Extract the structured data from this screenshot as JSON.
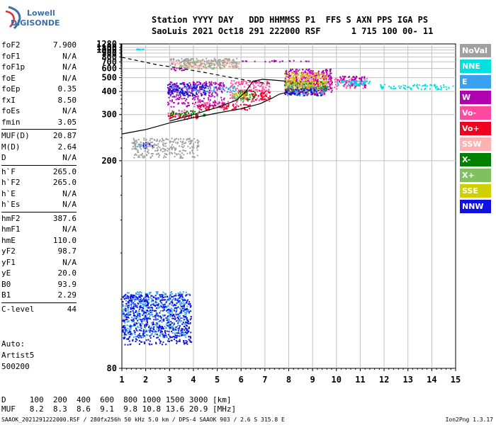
{
  "logo": {
    "line1": "Lowell",
    "line2": "DIGISONDE"
  },
  "header": {
    "line1": "Station YYYY DAY   DDD HHMMSS P1  FFS S AXN PPS IGA PS",
    "line2": "SaoLuis 2021 Oct18 291 222000 RSF      1 715 100 00- 11"
  },
  "params": [
    [
      {
        "k": "foF2",
        "v": "7.900"
      },
      {
        "k": "foF1",
        "v": "N/A"
      },
      {
        "k": "foF1p",
        "v": "N/A"
      },
      {
        "k": "foE",
        "v": "N/A"
      },
      {
        "k": "foEp",
        "v": "0.35"
      },
      {
        "k": "fxI",
        "v": "8.50"
      },
      {
        "k": "foEs",
        "v": "N/A"
      },
      {
        "k": "fmin",
        "v": "3.05"
      }
    ],
    [
      {
        "k": "MUF(D)",
        "v": "20.87"
      },
      {
        "k": "M(D)",
        "v": "2.64"
      },
      {
        "k": "D",
        "v": "N/A"
      }
    ],
    [
      {
        "k": "h`F",
        "v": "265.0"
      },
      {
        "k": "h`F2",
        "v": "265.0"
      },
      {
        "k": "h`E",
        "v": "N/A"
      },
      {
        "k": "h`Es",
        "v": "N/A"
      }
    ],
    [
      {
        "k": "hmF2",
        "v": "387.6"
      },
      {
        "k": "hmF1",
        "v": "N/A"
      },
      {
        "k": "hmE",
        "v": "110.0"
      },
      {
        "k": "yF2",
        "v": "98.7"
      },
      {
        "k": "yF1",
        "v": "N/A"
      },
      {
        "k": "yE",
        "v": "20.0"
      },
      {
        "k": "B0",
        "v": "93.9"
      },
      {
        "k": "B1",
        "v": "2.29"
      }
    ],
    [
      {
        "k": "C-level",
        "v": "44"
      }
    ]
  ],
  "auto": {
    "line1": "Auto:",
    "line2": "Artist5",
    "line3": "500200"
  },
  "legend": [
    {
      "label": "NoVal",
      "color": "#a0a0a0"
    },
    {
      "label": "NNE",
      "color": "#00e0e0"
    },
    {
      "label": "E",
      "color": "#3aa0f0"
    },
    {
      "label": "W",
      "color": "#b000b0"
    },
    {
      "label": "Vo-",
      "color": "#ff4aa0"
    },
    {
      "label": "Vo+",
      "color": "#f00020"
    },
    {
      "label": "SSW",
      "color": "#ffb0b0"
    },
    {
      "label": "X-",
      "color": "#008000"
    },
    {
      "label": "X+",
      "color": "#80c060"
    },
    {
      "label": "SSE",
      "color": "#d0d000"
    },
    {
      "label": "NNW",
      "color": "#1010e0"
    }
  ],
  "dtable": {
    "d_line": "D     100  200  400  600  800 1000 1500 3000 [km]",
    "muf_line": "MUF   8.2  8.3  8.6  9.1  9.8 10.8 13.6 20.9 [MHz]"
  },
  "footer": {
    "left": "SAAOK_2021291222000.RSF / 280fx256h 50 kHz 5.0 km / DPS-4 SAAOK 903 / 2.6 S 315.8 E",
    "right": "Ion2Png 1.3.17"
  },
  "chart_data": {
    "type": "scatter",
    "xlabel": "",
    "ylabel": "",
    "xlim": [
      1,
      15
    ],
    "ylim": [
      80,
      1280
    ],
    "x_ticks": [
      1,
      2,
      3,
      4,
      5,
      6,
      7,
      8,
      9,
      10,
      11,
      12,
      13,
      14,
      15
    ],
    "y_ticks": [
      80,
      200,
      300,
      400,
      500,
      600,
      700,
      800,
      900,
      1000,
      1100,
      1280
    ],
    "y_scale": "reciprocal",
    "grid": true,
    "series": [
      {
        "name": "Vo-",
        "color": "#ff4aa0",
        "clusters": [
          [
            2.9,
            4.0,
            292,
            318
          ],
          [
            4.0,
            5.8,
            322,
            352
          ],
          [
            5.5,
            7.2,
            350,
            480
          ],
          [
            7.8,
            9.6,
            385,
            560
          ],
          [
            9.6,
            11.3,
            420,
            500
          ]
        ]
      },
      {
        "name": "Vo+",
        "color": "#f00020",
        "clusters": [
          [
            2.9,
            4.2,
            288,
            305
          ],
          [
            4.2,
            6.5,
            318,
            340
          ],
          [
            6.0,
            7.2,
            360,
            410
          ],
          [
            7.8,
            9.5,
            390,
            480
          ]
        ]
      },
      {
        "name": "W",
        "color": "#b000b0",
        "clusters": [
          [
            2.9,
            5.3,
            330,
            470
          ],
          [
            6.0,
            7.8,
            710,
            728
          ],
          [
            7.0,
            8.9,
            712,
            738
          ],
          [
            3.0,
            3.6,
            582,
            620
          ],
          [
            7.8,
            9.8,
            400,
            600
          ],
          [
            10.0,
            11.2,
            430,
            520
          ]
        ]
      },
      {
        "name": "X-",
        "color": "#008000",
        "clusters": [
          [
            3.0,
            4.5,
            298,
            315
          ],
          [
            5.8,
            6.6,
            360,
            410
          ],
          [
            7.8,
            9.6,
            400,
            470
          ]
        ]
      },
      {
        "name": "X+",
        "color": "#80c060",
        "clusters": [
          [
            5.6,
            6.4,
            356,
            392
          ],
          [
            7.8,
            9.0,
            430,
            470
          ],
          [
            3.4,
            5.9,
            600,
            730
          ]
        ]
      },
      {
        "name": "E",
        "color": "#3aa0f0",
        "clusters": [
          [
            1.0,
            3.8,
            88,
            103
          ],
          [
            1.5,
            2.1,
            222,
            230
          ],
          [
            7.9,
            9.6,
            380,
            440
          ],
          [
            10.2,
            11.2,
            440,
            480
          ],
          [
            3.0,
            5.8,
            400,
            440
          ]
        ]
      },
      {
        "name": "NNE",
        "color": "#00e0e0",
        "clusters": [
          [
            11.8,
            14.9,
            415,
            450
          ],
          [
            10.0,
            11.4,
            440,
            480
          ],
          [
            1.6,
            1.9,
            1040,
            1055
          ]
        ]
      },
      {
        "name": "NNW",
        "color": "#1010e0",
        "clusters": [
          [
            1.0,
            3.9,
            86,
            102
          ],
          [
            1.8,
            2.3,
            220,
            232
          ],
          [
            2.9,
            4.6,
            380,
            460
          ],
          [
            7.8,
            9.4,
            380,
            420
          ]
        ]
      },
      {
        "name": "SSW",
        "color": "#ffb0b0",
        "clusters": [
          [
            3.0,
            5.9,
            610,
            760
          ]
        ]
      },
      {
        "name": "SSE",
        "color": "#d0d000",
        "clusters": [
          [
            7.8,
            9.6,
            420,
            560
          ],
          [
            5.6,
            6.3,
            370,
            400
          ]
        ]
      },
      {
        "name": "NoVal",
        "color": "#a0a0a0",
        "clusters": [
          [
            3.0,
            5.8,
            600,
            780
          ],
          [
            1.4,
            4.2,
            205,
            240
          ]
        ]
      }
    ],
    "curves": [
      {
        "name": "profile-dashed",
        "style": "dashed",
        "points": [
          [
            1.0,
            790
          ],
          [
            2.5,
            650
          ],
          [
            3.5,
            600
          ],
          [
            4.5,
            550
          ],
          [
            5.5,
            505
          ],
          [
            6.3,
            475
          ],
          [
            6.8,
            460
          ],
          [
            7.2,
            455
          ]
        ]
      },
      {
        "name": "profile-solid",
        "style": "solid",
        "points": [
          [
            1.0,
            248
          ],
          [
            2.0,
            258
          ],
          [
            3.0,
            275
          ],
          [
            4.0,
            290
          ],
          [
            5.0,
            305
          ],
          [
            6.0,
            320
          ],
          [
            6.8,
            340
          ],
          [
            7.3,
            365
          ],
          [
            7.6,
            385
          ],
          [
            7.9,
            395
          ]
        ]
      },
      {
        "name": "trace-solid",
        "style": "solid",
        "points": [
          [
            3.0,
            280
          ],
          [
            4.0,
            300
          ],
          [
            5.0,
            325
          ],
          [
            5.8,
            355
          ],
          [
            6.2,
            400
          ],
          [
            6.5,
            470
          ],
          [
            6.9,
            485
          ],
          [
            7.3,
            480
          ],
          [
            7.9,
            470
          ]
        ]
      }
    ]
  }
}
